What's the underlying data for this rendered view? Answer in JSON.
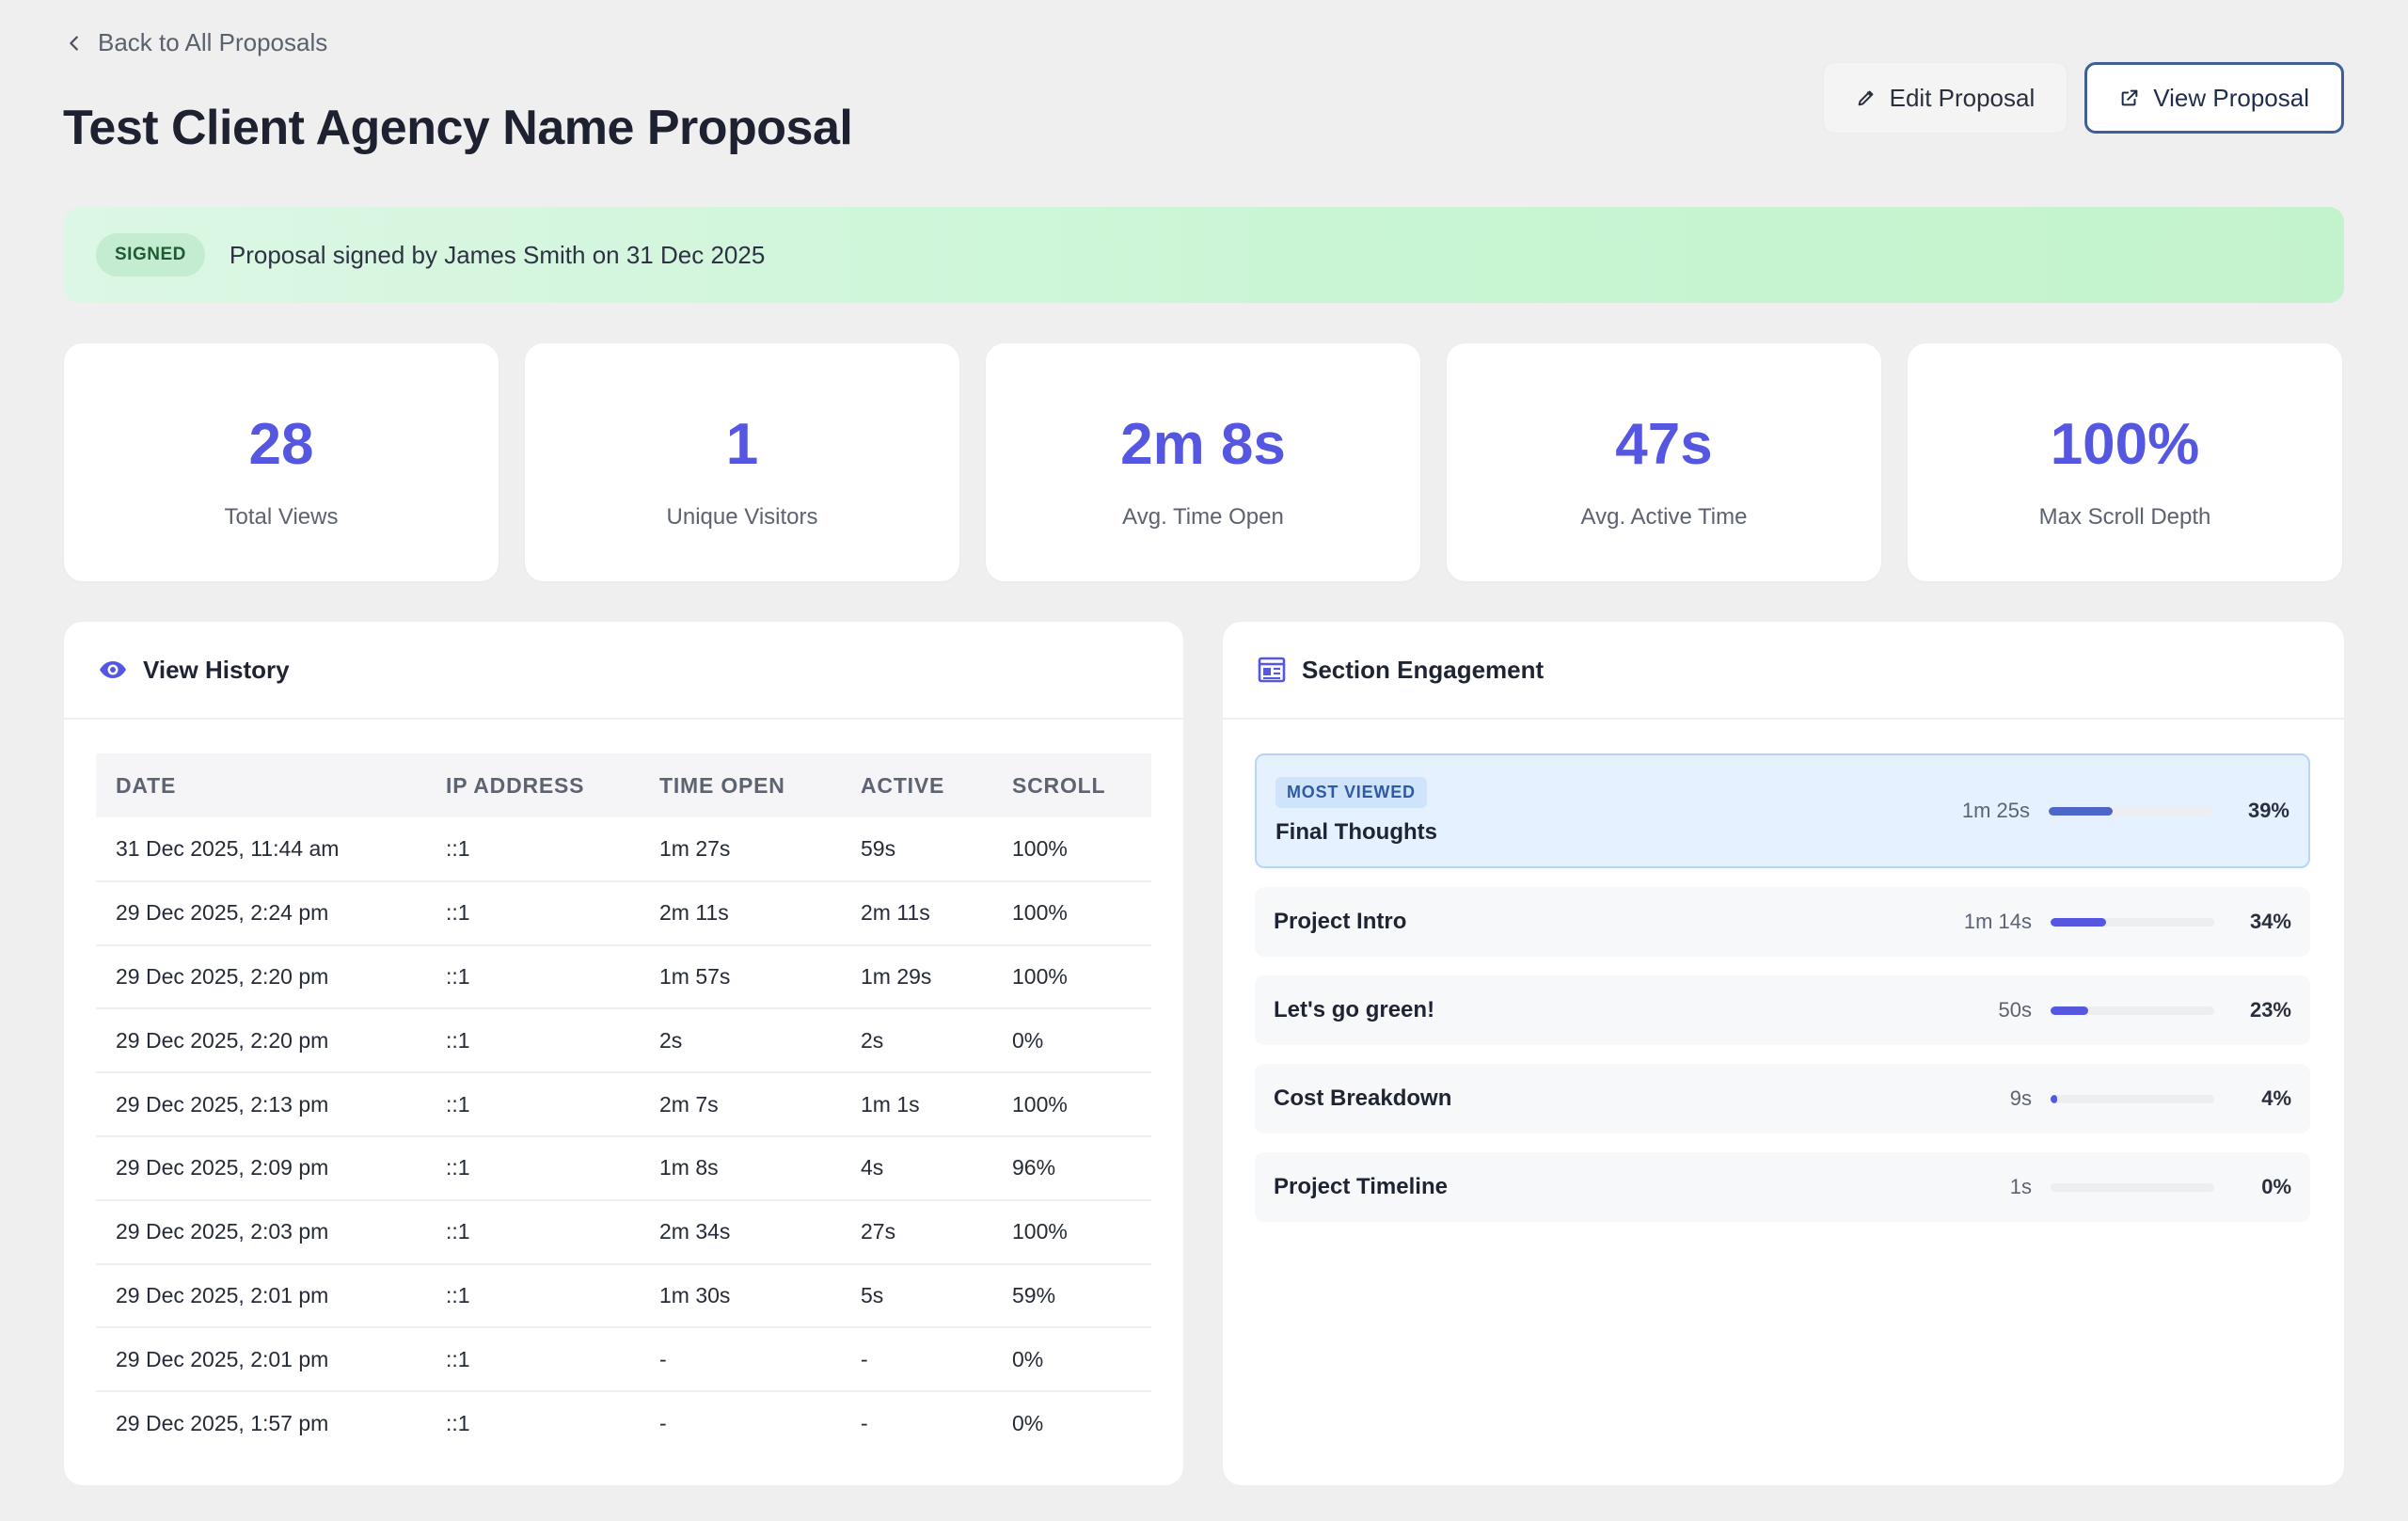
{
  "nav": {
    "back_label": "Back to All Proposals"
  },
  "page": {
    "title": "Test Client Agency Name Proposal"
  },
  "actions": {
    "edit_label": "Edit Proposal",
    "view_label": "View Proposal"
  },
  "banner": {
    "badge": "SIGNED",
    "text": "Proposal signed by James Smith on 31 Dec 2025",
    "color": "#c8f5d3"
  },
  "stats": [
    {
      "value": "28",
      "label": "Total Views"
    },
    {
      "value": "1",
      "label": "Unique Visitors"
    },
    {
      "value": "2m 8s",
      "label": "Avg. Time Open"
    },
    {
      "value": "47s",
      "label": "Avg. Active Time"
    },
    {
      "value": "100%",
      "label": "Max Scroll Depth"
    }
  ],
  "view_history": {
    "title": "View History",
    "icon": "eye-icon",
    "columns": [
      "DATE",
      "IP ADDRESS",
      "TIME OPEN",
      "ACTIVE",
      "SCROLL"
    ],
    "rows": [
      [
        "31 Dec 2025, 11:44 am",
        "::1",
        "1m 27s",
        "59s",
        "100%"
      ],
      [
        "29 Dec 2025, 2:24 pm",
        "::1",
        "2m 11s",
        "2m 11s",
        "100%"
      ],
      [
        "29 Dec 2025, 2:20 pm",
        "::1",
        "1m 57s",
        "1m 29s",
        "100%"
      ],
      [
        "29 Dec 2025, 2:20 pm",
        "::1",
        "2s",
        "2s",
        "0%"
      ],
      [
        "29 Dec 2025, 2:13 pm",
        "::1",
        "2m 7s",
        "1m 1s",
        "100%"
      ],
      [
        "29 Dec 2025, 2:09 pm",
        "::1",
        "1m 8s",
        "4s",
        "96%"
      ],
      [
        "29 Dec 2025, 2:03 pm",
        "::1",
        "2m 34s",
        "27s",
        "100%"
      ],
      [
        "29 Dec 2025, 2:01 pm",
        "::1",
        "1m 30s",
        "5s",
        "59%"
      ],
      [
        "29 Dec 2025, 2:01 pm",
        "::1",
        "-",
        "-",
        "0%"
      ],
      [
        "29 Dec 2025, 1:57 pm",
        "::1",
        "-",
        "-",
        "0%"
      ]
    ]
  },
  "section_engagement": {
    "title": "Section Engagement",
    "icon": "section-layout-icon",
    "most_viewed_badge": "MOST VIEWED",
    "accent": "#5557e0",
    "sections": [
      {
        "name": "Final Thoughts",
        "time": "1m 25s",
        "percent": "39%",
        "fill": 0.39
      },
      {
        "name": "Project Intro",
        "time": "1m 14s",
        "percent": "34%",
        "fill": 0.34
      },
      {
        "name": "Let's go green!",
        "time": "50s",
        "percent": "23%",
        "fill": 0.23
      },
      {
        "name": "Cost Breakdown",
        "time": "9s",
        "percent": "4%",
        "fill": 0.04
      },
      {
        "name": "Project Timeline",
        "time": "1s",
        "percent": "0%",
        "fill": 0.0
      }
    ]
  }
}
